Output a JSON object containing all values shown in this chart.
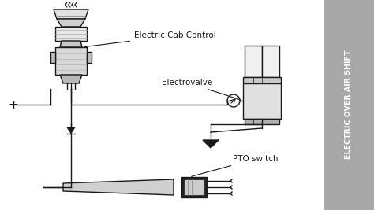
{
  "bg_color": "#ffffff",
  "sidebar_color": "#a8a8a8",
  "sidebar_text": "ELECTRIC OVER AIR SHIFT",
  "sidebar_text_color": "#ffffff",
  "line_color": "#1a1a1a",
  "label_ecc": "Electric Cab Control",
  "label_ev": "Electrovalve",
  "label_pto": "PTO switch",
  "label_plus": "+",
  "fig_width": 4.74,
  "fig_height": 2.67,
  "dpi": 100
}
